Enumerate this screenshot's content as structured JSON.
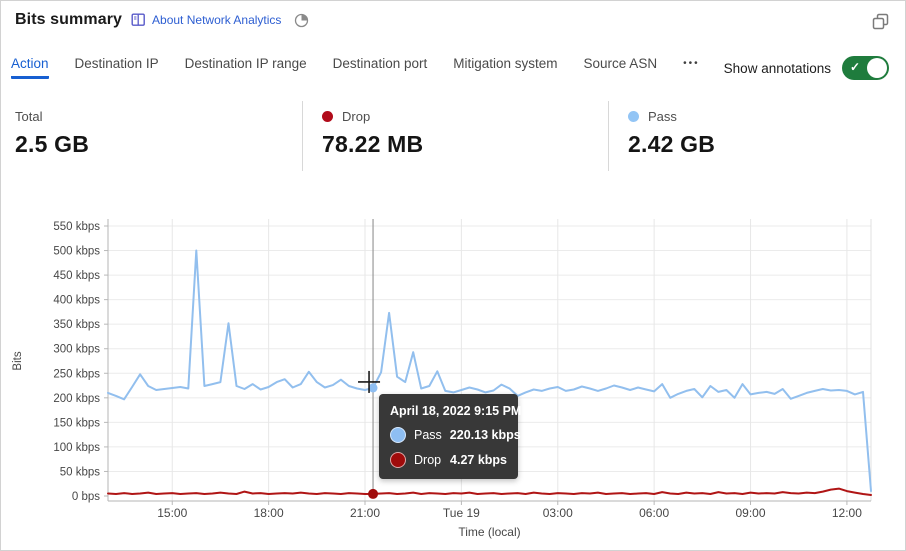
{
  "header": {
    "title": "Bits summary",
    "about_link": "About Network Analytics"
  },
  "tabs": {
    "items": [
      "Action",
      "Destination IP",
      "Destination IP range",
      "Destination port",
      "Mitigation system",
      "Source ASN"
    ],
    "active": "Action",
    "more_label": "•••"
  },
  "annotations_toggle": {
    "label": "Show annotations",
    "state": "on"
  },
  "stats": [
    {
      "label": "Total",
      "value": "2.5 GB",
      "dot_color": ""
    },
    {
      "label": "Drop",
      "value": "78.22 MB",
      "dot_color": "#b10b1a"
    },
    {
      "label": "Pass",
      "value": "2.42 GB",
      "dot_color": "#93c5f5"
    }
  ],
  "colors": {
    "accent_blue": "#175fd1",
    "toggle_green": "#1f7c3d",
    "pass_line": "#92bfee",
    "drop_line": "#b01515"
  },
  "chart_data": {
    "type": "line",
    "xlabel": "Time (local)",
    "ylabel": "Bits",
    "ylim": [
      0,
      550
    ],
    "grid": true,
    "start": "April 18, 2022 13:00",
    "interval_min": 15,
    "x_span_min": 1425,
    "y_ticks": [
      {
        "label": "0 bps",
        "value": 0
      },
      {
        "label": "50 kbps",
        "value": 50
      },
      {
        "label": "100 kbps",
        "value": 100
      },
      {
        "label": "150 kbps",
        "value": 150
      },
      {
        "label": "200 kbps",
        "value": 200
      },
      {
        "label": "250 kbps",
        "value": 250
      },
      {
        "label": "300 kbps",
        "value": 300
      },
      {
        "label": "350 kbps",
        "value": 350
      },
      {
        "label": "400 kbps",
        "value": 400
      },
      {
        "label": "450 kbps",
        "value": 450
      },
      {
        "label": "500 kbps",
        "value": 500
      },
      {
        "label": "550 kbps",
        "value": 550
      }
    ],
    "x_ticks": [
      {
        "label": "15:00",
        "offset_min": 120
      },
      {
        "label": "18:00",
        "offset_min": 300
      },
      {
        "label": "21:00",
        "offset_min": 480
      },
      {
        "label": "Tue 19",
        "offset_min": 660
      },
      {
        "label": "03:00",
        "offset_min": 840
      },
      {
        "label": "06:00",
        "offset_min": 1020
      },
      {
        "label": "09:00",
        "offset_min": 1200
      },
      {
        "label": "12:00",
        "offset_min": 1380
      }
    ],
    "series": [
      {
        "name": "Pass",
        "color": "#92bfee",
        "values": [
          210,
          204,
          197,
          222,
          248,
          224,
          216,
          218,
          220,
          222,
          219,
          500,
          224,
          228,
          232,
          352,
          224,
          218,
          228,
          217,
          222,
          232,
          238,
          221,
          228,
          253,
          232,
          221,
          226,
          237,
          224,
          219,
          216,
          220.13,
          252,
          373,
          243,
          232,
          293,
          219,
          224,
          254,
          214,
          211,
          216,
          221,
          217,
          211,
          215,
          227,
          219,
          204,
          211,
          217,
          214,
          219,
          222,
          214,
          217,
          223,
          219,
          214,
          219,
          225,
          221,
          216,
          221,
          217,
          213,
          228,
          200,
          208,
          214,
          218,
          201,
          224,
          212,
          216,
          200,
          228,
          207,
          210,
          212,
          208,
          218,
          198,
          204,
          210,
          214,
          218,
          215,
          216,
          214,
          207,
          212,
          10
        ]
      },
      {
        "name": "Drop",
        "color": "#b01515",
        "values": [
          5,
          4,
          6,
          4,
          5,
          7,
          4,
          5,
          6,
          4,
          5,
          6,
          4,
          5,
          7,
          5,
          4,
          9,
          5,
          6,
          4,
          5,
          6,
          5,
          7,
          5,
          4,
          6,
          5,
          4,
          6,
          5,
          4,
          4.27,
          5,
          6,
          4,
          5,
          7,
          4,
          6,
          5,
          4,
          6,
          5,
          7,
          4,
          5,
          6,
          4,
          5,
          6,
          4,
          7,
          5,
          4,
          6,
          5,
          4,
          6,
          5,
          7,
          4,
          5,
          6,
          4,
          5,
          6,
          4,
          8,
          5,
          4,
          7,
          5,
          6,
          4,
          8,
          5,
          6,
          4,
          7,
          5,
          6,
          5,
          8,
          6,
          5,
          7,
          6,
          9,
          13,
          15,
          10,
          7,
          4,
          2
        ]
      }
    ],
    "hover": {
      "offset_min": 495,
      "time_label": "April 18, 2022 9:15 PM",
      "rows": [
        {
          "name": "Pass",
          "value": 220.13,
          "value_label": "220.13 kbps",
          "color": "#8ebef2"
        },
        {
          "name": "Drop",
          "value": 4.27,
          "value_label": "4.27 kbps",
          "color": "#a00b0b"
        }
      ]
    }
  }
}
